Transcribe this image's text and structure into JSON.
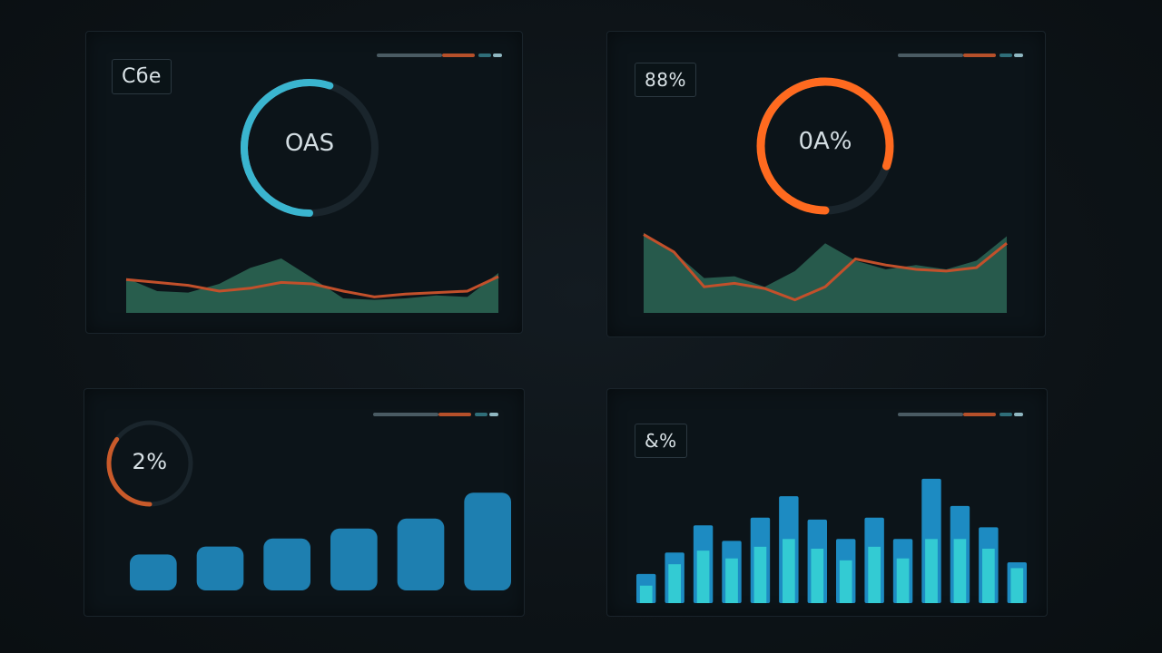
{
  "panels": {
    "top_left": {
      "label": "Cбe",
      "gauge_text": "OAS",
      "gauge_fraction": 0.55,
      "colors": {
        "gauge_primary": "#3ab5cf",
        "gauge_secondary": "#9aa8c4",
        "area_fill": "#2e6a57",
        "line": "#c2502b"
      }
    },
    "top_right": {
      "label": "88%",
      "gauge_text": "0A%",
      "gauge_fraction": 0.8,
      "colors": {
        "gauge_primary": "#ff6a1f",
        "gauge_secondary": "#5fc7d9",
        "area_fill": "#2d6656",
        "line": "#c2502b"
      }
    },
    "bottom_left": {
      "label": "2%",
      "gauge_fraction": 0.35,
      "colors": {
        "gauge_primary": "#c95a2a",
        "bar": "#1e7fb0"
      }
    },
    "bottom_right": {
      "label": "&%",
      "colors": {
        "bar_top": "#1d8bc2",
        "bar_bottom": "#37d6d6"
      }
    }
  },
  "chart_data": [
    {
      "type": "area",
      "x": [
        0,
        1,
        2,
        3,
        4,
        5,
        6,
        7,
        8,
        9,
        10,
        11,
        12
      ],
      "series": [
        {
          "values": [
            48,
            30,
            28,
            40,
            62,
            75,
            48,
            20,
            18,
            20,
            24,
            22,
            55
          ]
        },
        {
          "values": [
            46,
            42,
            38,
            30,
            34,
            42,
            40,
            30,
            22,
            26,
            28,
            30,
            50
          ]
        }
      ],
      "ylim": [
        0,
        100
      ]
    },
    {
      "type": "area",
      "x": [
        0,
        1,
        2,
        3,
        4,
        5,
        6,
        7,
        8,
        9,
        10,
        11,
        12
      ],
      "series": [
        {
          "values": [
            92,
            70,
            40,
            42,
            30,
            48,
            80,
            60,
            50,
            55,
            50,
            60,
            88
          ]
        },
        {
          "values": [
            90,
            70,
            30,
            34,
            28,
            15,
            30,
            62,
            55,
            50,
            48,
            52,
            80
          ]
        }
      ],
      "ylim": [
        0,
        100
      ]
    },
    {
      "type": "bar",
      "values": [
        36,
        44,
        52,
        62,
        72,
        98
      ],
      "ylim": [
        0,
        100
      ]
    },
    {
      "type": "bar",
      "values": [
        30,
        52,
        80,
        64,
        88,
        110,
        86,
        66,
        88,
        66,
        128,
        100,
        78,
        42
      ],
      "overlay_values": [
        18,
        40,
        54,
        46,
        58,
        66,
        56,
        44,
        58,
        46,
        66,
        66,
        56,
        36
      ],
      "ylim": [
        0,
        140
      ]
    }
  ]
}
